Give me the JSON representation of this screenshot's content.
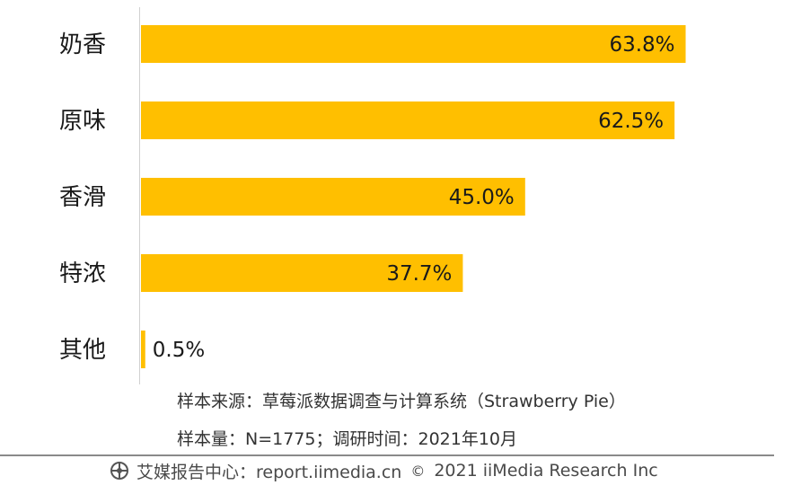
{
  "chart_data": {
    "type": "bar",
    "orientation": "horizontal",
    "categories": [
      "奶香",
      "原味",
      "香滑",
      "特浓",
      "其他"
    ],
    "values": [
      63.8,
      62.5,
      45.0,
      37.7,
      0.5
    ],
    "value_labels": [
      "63.8%",
      "62.5%",
      "45.0%",
      "37.7%",
      "0.5%"
    ],
    "xlim": [
      0,
      75
    ],
    "bar_color": "#FFBF00",
    "grid": false,
    "legend": "none"
  },
  "notes": {
    "source": "样本来源：草莓派数据调查与计算系统（Strawberry Pie）",
    "sample": "样本量：N=1775；调研时间：2021年10月"
  },
  "footer": {
    "brand": "艾媒报告中心：report.iimedia.cn",
    "separator": "©",
    "copyright": "2021  iiMedia Research Inc"
  }
}
